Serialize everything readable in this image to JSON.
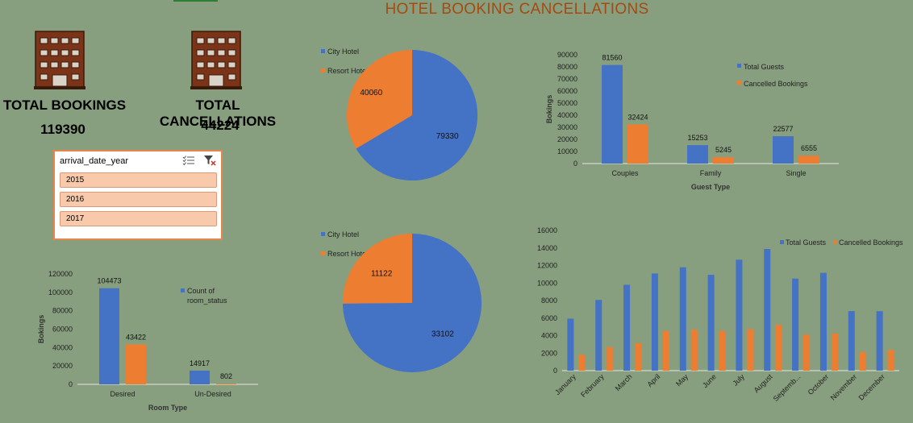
{
  "title": "HOTEL BOOKING CANCELLATIONS",
  "colors": {
    "blue": "#4472c4",
    "orange": "#ed7d31",
    "title": "#a64a12",
    "icon": "#7b3418"
  },
  "kpis": [
    {
      "label": "TOTAL BOOKINGS",
      "value": "119390",
      "icon": "hotel-building-icon"
    },
    {
      "label": "TOTAL CANCELLATIONS",
      "value": "44224",
      "icon": "hotel-building-icon"
    }
  ],
  "slicer": {
    "field": "arrival_date_year",
    "items": [
      "2015",
      "2016",
      "2017"
    ],
    "icons": [
      "multi-select-icon",
      "clear-filter-icon"
    ]
  },
  "chart_data": [
    {
      "id": "pie_bookings",
      "type": "pie",
      "legend": [
        "City Hotel",
        "Resort Hotel"
      ],
      "values": [
        79330,
        40060
      ],
      "labels": [
        "79330",
        "40060"
      ],
      "legend_position": "top-left"
    },
    {
      "id": "pie_cancellations",
      "type": "pie",
      "legend": [
        "City Hotel",
        "Resort Hotel"
      ],
      "values": [
        33102,
        11122
      ],
      "labels": [
        "33102",
        "11122"
      ],
      "legend_position": "top-left"
    },
    {
      "id": "guest_type",
      "type": "bar",
      "categories": [
        "Couples",
        "Family",
        "Single"
      ],
      "series": [
        {
          "name": "Total Guests",
          "values": [
            81560,
            15253,
            22577
          ]
        },
        {
          "name": "Cancelled Bookings",
          "values": [
            32424,
            5245,
            6555
          ]
        }
      ],
      "data_labels": true,
      "xlabel": "Guest Type",
      "ylabel": "Bokings",
      "ylim": [
        0,
        90000
      ],
      "yticks": [
        "0",
        "10000",
        "20000",
        "30000",
        "40000",
        "50000",
        "60000",
        "70000",
        "80000",
        "90000"
      ],
      "legend_position": "top-right"
    },
    {
      "id": "room_type",
      "type": "bar",
      "categories": [
        "Desired",
        "Un-Desired"
      ],
      "series": [
        {
          "name": "Count of room_status",
          "values": [
            104473,
            14917
          ]
        },
        {
          "name": "",
          "values": [
            43422,
            802
          ]
        }
      ],
      "legend": [
        "Count of",
        "room_status"
      ],
      "data_labels": true,
      "xlabel": "Room Type",
      "ylabel": "Bokings",
      "ylim": [
        0,
        120000
      ],
      "yticks": [
        "0",
        "20000",
        "40000",
        "60000",
        "80000",
        "100000",
        "120000"
      ],
      "legend_position": "right"
    },
    {
      "id": "monthly",
      "type": "bar",
      "categories": [
        "January",
        "February",
        "March",
        "April",
        "May",
        "June",
        "July",
        "August",
        "Septemb...",
        "October",
        "November",
        "December"
      ],
      "series": [
        {
          "name": "Total Guests",
          "values": [
            5929,
            8068,
            9794,
            11089,
            11791,
            10939,
            12661,
            13877,
            10508,
            11160,
            6794,
            6780
          ]
        },
        {
          "name": "Cancelled Bookings",
          "values": [
            1807,
            2696,
            3149,
            4524,
            4677,
            4535,
            4742,
            5239,
            4116,
            4246,
            2122,
            2371
          ]
        }
      ],
      "ylim": [
        0,
        16000
      ],
      "yticks": [
        "0",
        "2000",
        "4000",
        "6000",
        "8000",
        "10000",
        "12000",
        "14000",
        "16000"
      ],
      "legend_position": "top-right"
    }
  ]
}
